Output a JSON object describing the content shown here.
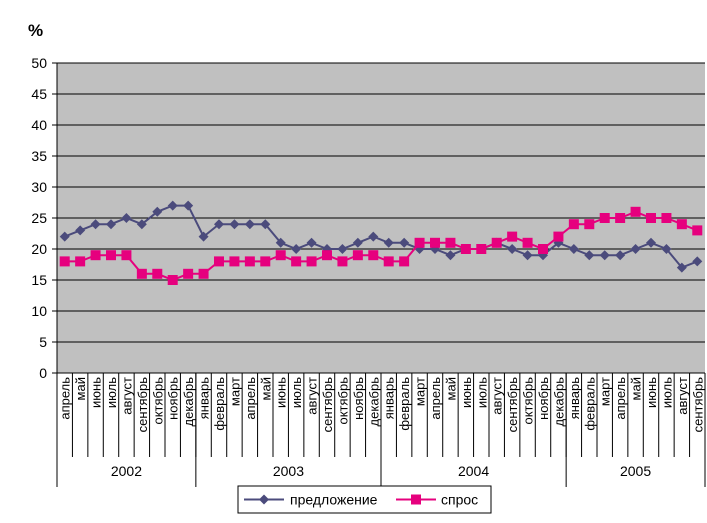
{
  "chart_data": {
    "type": "line",
    "unit_label": "%",
    "ylim": [
      0,
      50
    ],
    "yticks": [
      "0",
      "5",
      "10",
      "15",
      "20",
      "25",
      "30",
      "35",
      "40",
      "45",
      "50"
    ],
    "grid": true,
    "categories": [
      "апрель",
      "май",
      "июнь",
      "июль",
      "август",
      "сентябрь",
      "октябрь",
      "ноябрь",
      "декабрь",
      "январь",
      "февраль",
      "март",
      "апрель",
      "май",
      "июнь",
      "июль",
      "август",
      "сентябрь",
      "октябрь",
      "ноябрь",
      "декабрь",
      "январь",
      "февраль",
      "март",
      "апрель",
      "май",
      "июнь",
      "июль",
      "август",
      "сентябрь",
      "октябрь",
      "ноябрь",
      "декабрь",
      "январь",
      "февраль",
      "март",
      "апрель",
      "май",
      "июнь",
      "июль",
      "август",
      "сентябрь"
    ],
    "years": [
      {
        "label": "2002",
        "count": 9
      },
      {
        "label": "2003",
        "count": 12
      },
      {
        "label": "2004",
        "count": 12
      },
      {
        "label": "2005",
        "count": 9
      }
    ],
    "series": [
      {
        "name": "предложение",
        "color": "#4b4b7c",
        "marker": "diamond",
        "values": [
          22,
          23,
          24,
          24,
          25,
          24,
          26,
          27,
          27,
          22,
          24,
          24,
          24,
          24,
          21,
          20,
          21,
          20,
          20,
          21,
          22,
          21,
          21,
          20,
          20,
          19,
          20,
          20,
          21,
          20,
          19,
          19,
          21,
          20,
          19,
          19,
          19,
          20,
          21,
          20,
          17,
          18
        ]
      },
      {
        "name": "спрос",
        "color": "#e6007e",
        "marker": "square",
        "values": [
          18,
          18,
          19,
          19,
          19,
          16,
          16,
          15,
          16,
          16,
          18,
          18,
          18,
          18,
          19,
          18,
          18,
          19,
          18,
          19,
          19,
          18,
          18,
          21,
          21,
          21,
          20,
          20,
          21,
          22,
          21,
          20,
          22,
          24,
          24,
          25,
          25,
          26,
          25,
          25,
          24,
          23
        ]
      }
    ],
    "legend_position": "bottom-center"
  }
}
